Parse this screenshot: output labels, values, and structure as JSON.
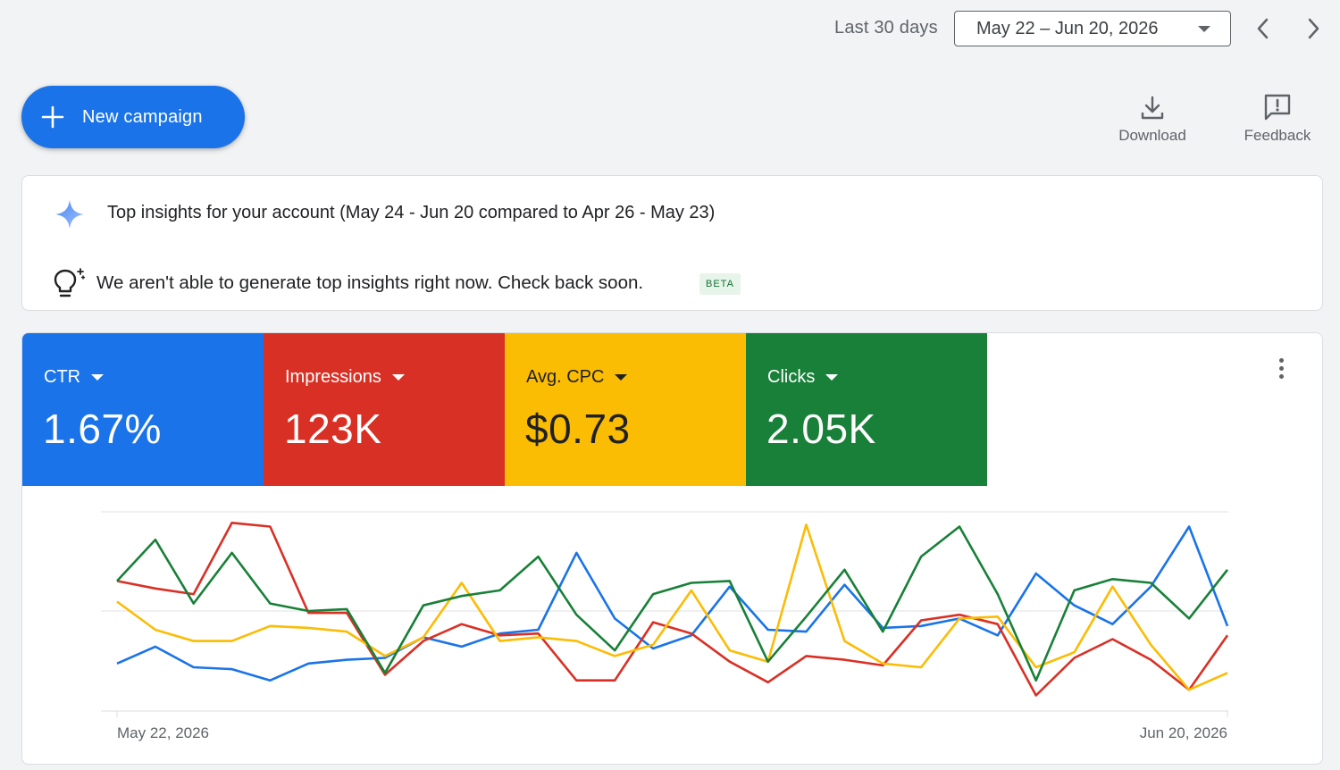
{
  "header": {
    "range_label": "Last 30 days",
    "date_range": "May 22 – Jun 20, 2026",
    "prev_icon": "chevron-left-icon",
    "next_icon": "chevron-right-icon"
  },
  "actions": {
    "new_campaign": "New campaign",
    "download": "Download",
    "feedback": "Feedback"
  },
  "insights": {
    "title": "Top insights for your account (May 24 - Jun 20 compared to Apr 26 - May 23)",
    "message": "We aren't able to generate top insights right now. Check back soon.",
    "badge": "BETA"
  },
  "metrics": [
    {
      "name": "CTR",
      "value": "1.67%",
      "color": "#1a73e8",
      "text_color": "#ffffff"
    },
    {
      "name": "Impressions",
      "value": "123K",
      "color": "#d93025",
      "text_color": "#ffffff"
    },
    {
      "name": "Avg. CPC",
      "value": "$0.73",
      "color": "#fbbc04",
      "text_color": "#202124"
    },
    {
      "name": "Clicks",
      "value": "2.05K",
      "color": "#188038",
      "text_color": "#ffffff"
    }
  ],
  "chart_data": {
    "type": "line",
    "x_start_label": "May 22, 2026",
    "x_end_label": "Jun 20, 2026",
    "ylim": [
      0,
      100
    ],
    "grid": true,
    "series": [
      {
        "color": "#1a73e8",
        "values": [
          22,
          31,
          20,
          19,
          13,
          22,
          24,
          25,
          36,
          31,
          38,
          40,
          81,
          46,
          30,
          37,
          63,
          40,
          39,
          64,
          41,
          42,
          46,
          37,
          70,
          53,
          43,
          63,
          95,
          42
        ]
      },
      {
        "color": "#d93025",
        "values": [
          66,
          62,
          59,
          97,
          95,
          49,
          49,
          16,
          34,
          43,
          37,
          38,
          13,
          13,
          44,
          38,
          23,
          12,
          26,
          24,
          21,
          45,
          48,
          43,
          5,
          25,
          35,
          24,
          8,
          37
        ]
      },
      {
        "color": "#fbbc04",
        "values": [
          55,
          40,
          34,
          34,
          42,
          41,
          39,
          26,
          36,
          65,
          34,
          36,
          34,
          26,
          32,
          61,
          29,
          23,
          96,
          34,
          22,
          20,
          46,
          47,
          20,
          28,
          63,
          32,
          8,
          17
        ]
      },
      {
        "color": "#188038",
        "values": [
          66,
          88,
          54,
          81,
          54,
          50,
          51,
          17,
          53,
          58,
          61,
          79,
          48,
          29,
          59,
          65,
          66,
          23,
          47,
          72,
          39,
          79,
          95,
          59,
          13,
          61,
          67,
          65,
          46,
          72
        ]
      }
    ]
  }
}
